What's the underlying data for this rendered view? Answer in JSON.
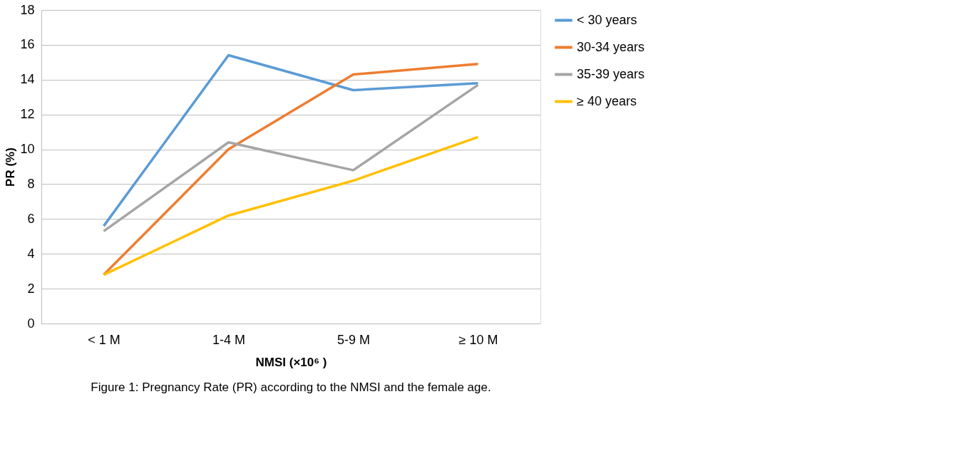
{
  "chart_data": {
    "type": "line",
    "xlabel": "NMSI (×10⁶ )",
    "ylabel": "PR (%)",
    "categories": [
      "< 1 M",
      "1-4 M",
      "5-9 M",
      "≥ 10 M"
    ],
    "series": [
      {
        "name": "< 30 years",
        "color": "#5b9bd5",
        "values": [
          5.6,
          15.4,
          13.4,
          13.8
        ]
      },
      {
        "name": "30-34 years",
        "color": "#ed7d31",
        "values": [
          2.8,
          10.0,
          14.3,
          14.9
        ]
      },
      {
        "name": "35-39 years",
        "color": "#a5a5a5",
        "values": [
          5.3,
          10.4,
          8.8,
          13.7
        ]
      },
      {
        "name": "≥ 40 years",
        "color": "#ffc000",
        "values": [
          2.8,
          6.2,
          8.2,
          10.7
        ]
      }
    ],
    "ylim": [
      0,
      18
    ],
    "yticks": [
      0,
      2,
      4,
      6,
      8,
      10,
      12,
      14,
      16,
      18
    ],
    "grid": "y",
    "legend": "right",
    "marker": "none",
    "line_style": "solid",
    "annotations": [
      "Figure 1: Pregnancy Rate (PR) according to the NMSI and the female age."
    ]
  }
}
